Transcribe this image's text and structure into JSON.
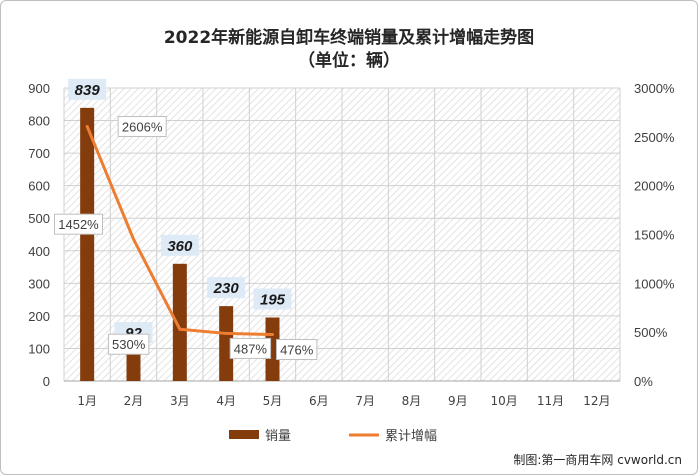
{
  "chart_data": {
    "type": "bar",
    "title": "2022年新能源自卸车终端销量及累计增幅走势图",
    "subtitle": "（单位：辆）",
    "categories": [
      "1月",
      "2月",
      "3月",
      "4月",
      "5月",
      "6月",
      "7月",
      "8月",
      "9月",
      "10月",
      "11月",
      "12月"
    ],
    "series": [
      {
        "name": "销量",
        "type": "bar",
        "axis": "left",
        "color": "#843c0c",
        "values": [
          839,
          92,
          360,
          230,
          195,
          null,
          null,
          null,
          null,
          null,
          null,
          null
        ],
        "labels": [
          "839",
          "92",
          "360",
          "230",
          "195"
        ]
      },
      {
        "name": "累计增幅",
        "type": "line",
        "axis": "right",
        "color": "#ed7d31",
        "values": [
          2606,
          1452,
          530,
          487,
          476,
          null,
          null,
          null,
          null,
          null,
          null,
          null
        ],
        "labels": [
          "2606%",
          "1452%",
          "530%",
          "487%",
          "476%"
        ]
      }
    ],
    "y_left": {
      "min": 0,
      "max": 900,
      "step": 100,
      "ticks": [
        "0",
        "100",
        "200",
        "300",
        "400",
        "500",
        "600",
        "700",
        "800",
        "900"
      ]
    },
    "y_right": {
      "min": 0,
      "max": 3000,
      "step": 500,
      "ticks": [
        "0%",
        "500%",
        "1000%",
        "1500%",
        "2000%",
        "2500%",
        "3000%"
      ]
    },
    "grid": true,
    "legend_position": "bottom",
    "plot_background": "hatched-gray"
  },
  "credit": "制图:第一商用车网 cvworld.cn"
}
